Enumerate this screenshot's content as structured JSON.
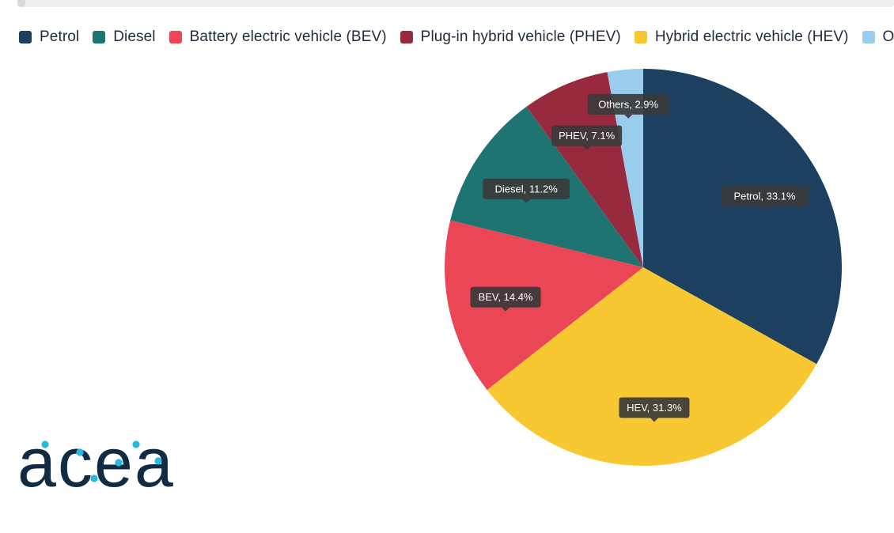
{
  "chart_data": {
    "type": "pie",
    "legend_position": "top-left",
    "slices": [
      {
        "name": "Petrol",
        "value": 33.1,
        "label": "Petrol, 33.1%",
        "color": "#1d4060"
      },
      {
        "name": "Hybrid electric vehicle (HEV)",
        "value": 31.3,
        "label": "HEV, 31.3%",
        "color": "#f8c832"
      },
      {
        "name": "Battery electric vehicle (BEV)",
        "value": 14.4,
        "label": "BEV, 14.4%",
        "color": "#ea4656"
      },
      {
        "name": "Diesel",
        "value": 11.2,
        "label": "Diesel, 11.2%",
        "color": "#1f7471"
      },
      {
        "name": "Plug-in hybrid vehicle (PHEV)",
        "value": 7.1,
        "label": "PHEV, 7.1%",
        "color": "#982a3f"
      },
      {
        "name": "Others",
        "value": 2.9,
        "label": "Others, 2.9%",
        "color": "#9acdec"
      }
    ],
    "legend": [
      {
        "label": "Petrol",
        "color": "#1d4060"
      },
      {
        "label": "Diesel",
        "color": "#1f7471"
      },
      {
        "label": "Battery electric vehicle (BEV)",
        "color": "#ea4656"
      },
      {
        "label": "Plug-in hybrid vehicle (PHEV)",
        "color": "#982a3f"
      },
      {
        "label": "Hybrid electric vehicle (HEV)",
        "color": "#f8c832"
      },
      {
        "label": "Others",
        "color": "#9acdec"
      }
    ]
  },
  "logo": {
    "text": "acea",
    "color": "#0f2c44",
    "dot_color": "#2bb8e0"
  }
}
